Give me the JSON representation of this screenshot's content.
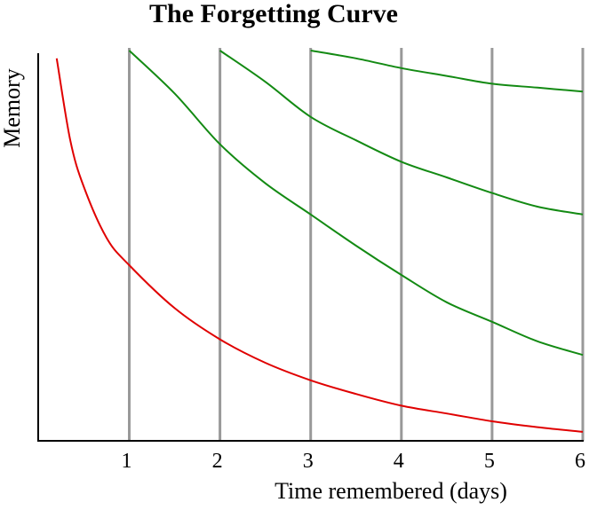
{
  "chart_data": {
    "type": "line",
    "title": "The Forgetting Curve",
    "xlabel": "Time remembered (days)",
    "ylabel": "Memory",
    "xlim": [
      0.12,
      6
    ],
    "ylim": [
      0,
      100
    ],
    "x_ticks": [
      1,
      2,
      3,
      4,
      5,
      6
    ],
    "grid": "vertical lines at each day",
    "legend": "none",
    "series": [
      {
        "color": "#e00000",
        "x": [
          0.2,
          0.35,
          0.5,
          0.75,
          1.0,
          1.5,
          2.0,
          2.5,
          3.0,
          3.5,
          4.0,
          4.5,
          5.0,
          5.5,
          6.0
        ],
        "y": [
          98,
          77,
          65,
          52,
          45,
          34,
          26,
          20,
          15.5,
          12,
          9,
          7,
          5,
          3.5,
          2.3
        ]
      },
      {
        "color": "#138a13",
        "x": [
          1.0,
          1.5,
          2.0,
          2.5,
          3.0,
          3.5,
          4.0,
          4.5,
          5.0,
          5.5,
          6.0
        ],
        "y": [
          100,
          89,
          76,
          66,
          58,
          50,
          42.5,
          35.5,
          30.5,
          25.5,
          22
        ]
      },
      {
        "color": "#138a13",
        "x": [
          2.0,
          2.5,
          3.0,
          3.5,
          4.0,
          4.5,
          5.0,
          5.5,
          6.0
        ],
        "y": [
          100,
          92,
          83,
          77,
          71.5,
          67.5,
          63.5,
          60,
          58
        ]
      },
      {
        "color": "#138a13",
        "x": [
          3.0,
          3.5,
          4.0,
          4.5,
          5.0,
          5.5,
          6.0
        ],
        "y": [
          100,
          98,
          95.5,
          93.5,
          91.5,
          90.5,
          89.5
        ]
      }
    ]
  }
}
